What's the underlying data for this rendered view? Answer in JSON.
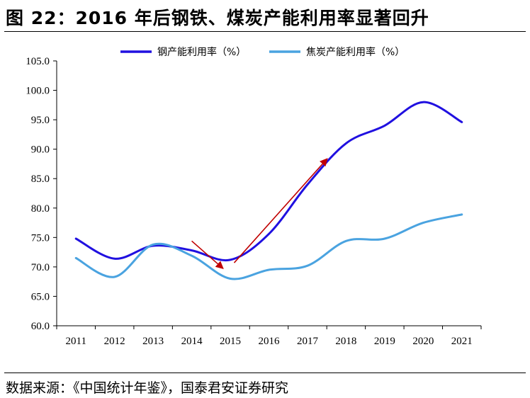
{
  "figure_title": "图 22：2016 年后钢铁、煤炭产能利用率显著回升",
  "source": "数据来源：《中国统计年鉴》，国泰君安证券研究",
  "colors": {
    "steel": "#2010e0",
    "coal": "#4aa3e0",
    "arrow": "#c00000"
  },
  "chart_data": {
    "type": "line",
    "title": "",
    "xlabel": "",
    "ylabel": "",
    "x": [
      "2011",
      "2012",
      "2013",
      "2014",
      "2015",
      "2016",
      "2017",
      "2018",
      "2019",
      "2020",
      "2021"
    ],
    "ylim": [
      60,
      105
    ],
    "yticks": [
      "60.0",
      "65.0",
      "70.0",
      "75.0",
      "80.0",
      "85.0",
      "90.0",
      "95.0",
      "100.0",
      "105.0"
    ],
    "grid": false,
    "legend": "top",
    "series": [
      {
        "name": "钢产能利用率（%）",
        "values": [
          74.8,
          71.4,
          73.6,
          72.8,
          71.2,
          75.6,
          84.0,
          91.0,
          94.0,
          98.0,
          94.6
        ]
      },
      {
        "name": "焦炭产能利用率（%）",
        "values": [
          71.5,
          68.3,
          73.8,
          71.9,
          68.0,
          69.5,
          70.2,
          74.4,
          74.8,
          77.5,
          78.9
        ]
      }
    ],
    "annotations": [
      {
        "type": "arrow",
        "from": [
          2014.0,
          74.4
        ],
        "to": [
          2014.8,
          69.8
        ]
      },
      {
        "type": "arrow",
        "from": [
          2015.1,
          70.7
        ],
        "to": [
          2017.5,
          88.3
        ]
      }
    ]
  }
}
